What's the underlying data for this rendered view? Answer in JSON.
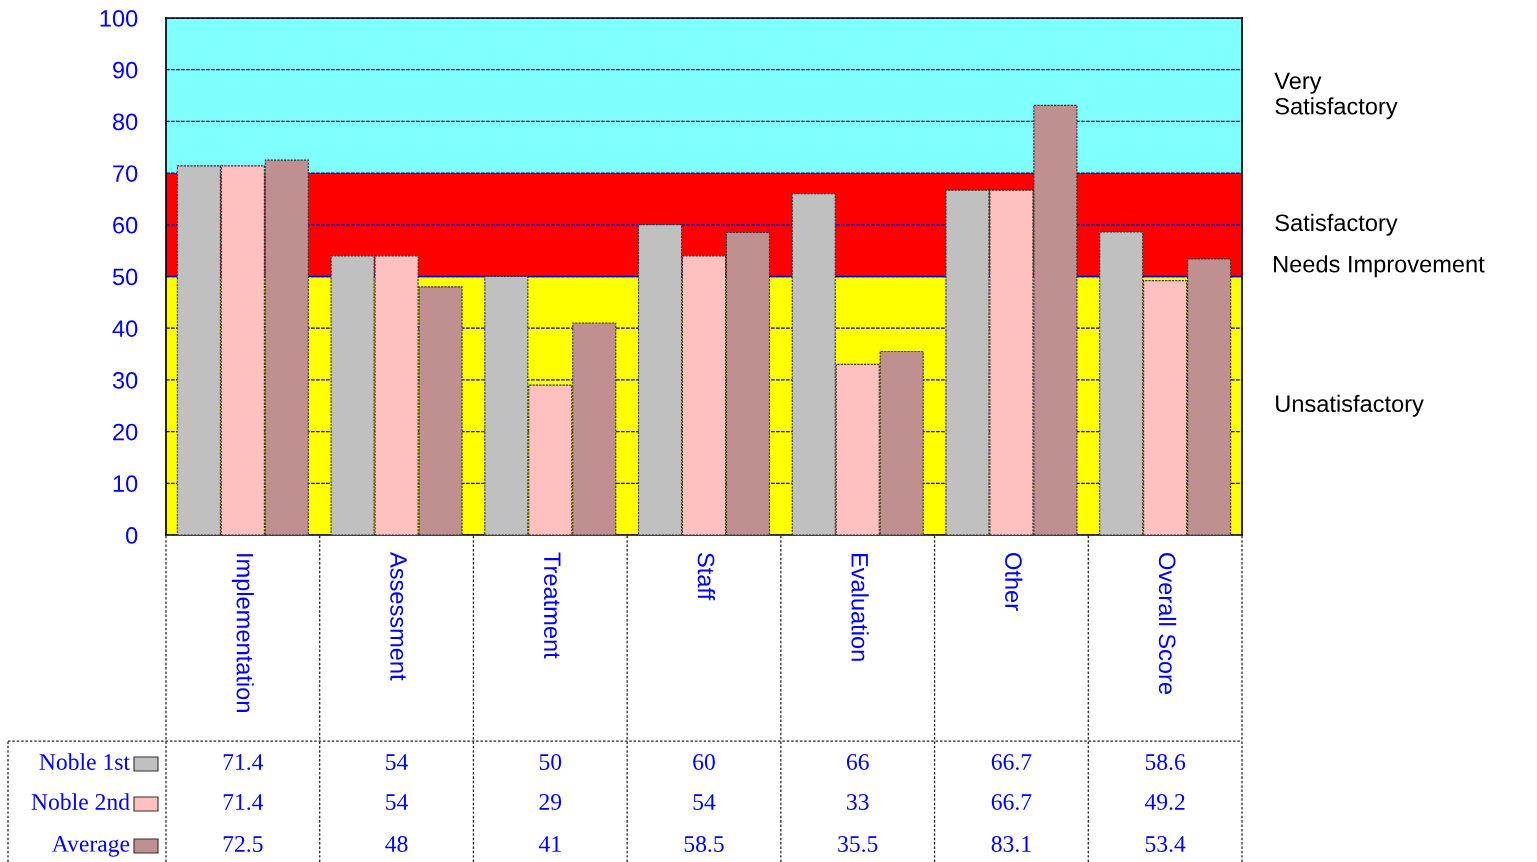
{
  "chart_data": {
    "type": "bar",
    "categories": [
      "Implementation",
      "Assessment",
      "Treatment",
      "Staff",
      "Evaluation",
      "Other",
      "Overall Score"
    ],
    "series": [
      {
        "name": "Noble 1st",
        "color": "#c0c0c0",
        "values": [
          71.4,
          54,
          50,
          60,
          66,
          66.7,
          58.6
        ]
      },
      {
        "name": "Noble 2nd",
        "color": "#ffc0c0",
        "values": [
          71.4,
          54,
          29,
          54,
          33,
          66.7,
          49.2
        ]
      },
      {
        "name": "Average",
        "color": "#c09090",
        "values": [
          72.5,
          48,
          41,
          58.5,
          35.5,
          83.1,
          53.4
        ]
      }
    ],
    "ylim": [
      0,
      100
    ],
    "yticks": [
      0,
      10,
      20,
      30,
      40,
      50,
      60,
      70,
      80,
      90,
      100
    ],
    "grid": "y",
    "legend": "bottom left",
    "data_labels": true,
    "bands": [
      {
        "axis": "y",
        "from": 0,
        "to": 50,
        "label": "Unsatisfactory",
        "color": "#ffff00"
      },
      {
        "axis": "y",
        "from": 50,
        "to": 70,
        "label": "Satisfactory",
        "color": "#ff0000"
      },
      {
        "axis": "y",
        "from": 70,
        "to": 100,
        "label": "Very\nSatisfactory",
        "color": "#80ffff"
      }
    ],
    "ref_lines": [
      {
        "axis": "y",
        "value": 50,
        "label": "Needs Improvement",
        "color": "#0000c0"
      }
    ]
  }
}
